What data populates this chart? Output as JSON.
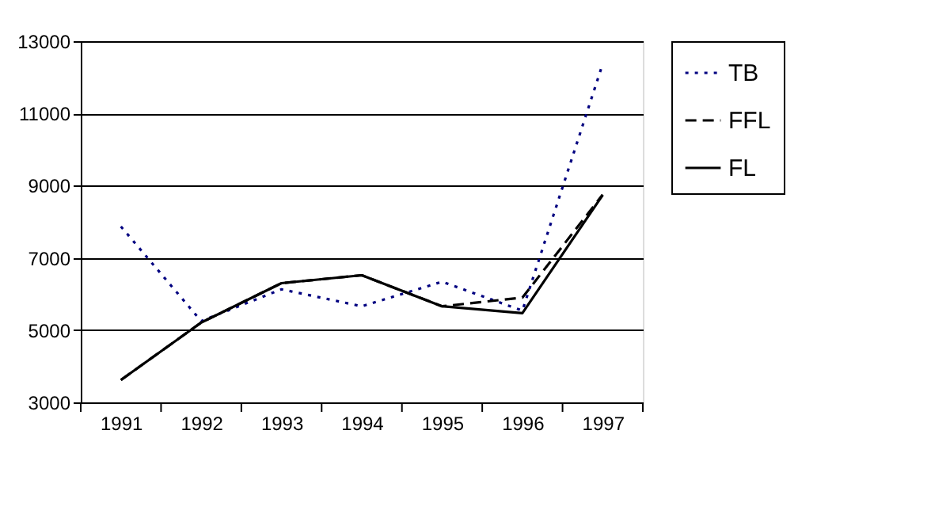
{
  "chart_data": {
    "type": "line",
    "categories": [
      "1991",
      "1992",
      "1993",
      "1994",
      "1995",
      "1996",
      "1997"
    ],
    "series": [
      {
        "name": "TB",
        "color": "#000080",
        "line_style": "dotted",
        "values": [
          7870,
          5250,
          6130,
          5660,
          6340,
          5540,
          12370
        ]
      },
      {
        "name": "FFL",
        "color": "#000000",
        "line_style": "dashed",
        "values": [
          3620,
          5210,
          6300,
          6520,
          5660,
          5900,
          8750
        ]
      },
      {
        "name": "FL",
        "color": "#000000",
        "line_style": "solid",
        "values": [
          3620,
          5210,
          6300,
          6520,
          5660,
          5470,
          8740
        ]
      }
    ],
    "ylim": [
      3000,
      13000
    ],
    "yticks": [
      3000,
      5000,
      7000,
      9000,
      11000,
      13000
    ],
    "grid": "y",
    "legend": "right",
    "marker": "none"
  }
}
